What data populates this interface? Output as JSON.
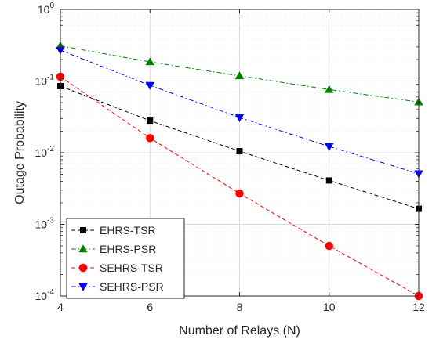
{
  "chart_data": {
    "type": "line",
    "title": "",
    "xlabel": "Number of Relays (N)",
    "ylabel": "Outage Probability",
    "x": [
      4,
      6,
      8,
      10,
      12
    ],
    "xlim": [
      4,
      12
    ],
    "ylim": [
      0.0001,
      1
    ],
    "yscale": "log",
    "xticks": [
      "4",
      "6",
      "8",
      "10",
      "12"
    ],
    "yticks": [
      {
        "base": "10",
        "exp": "-4"
      },
      {
        "base": "10",
        "exp": "-3"
      },
      {
        "base": "10",
        "exp": "-2"
      },
      {
        "base": "10",
        "exp": "-1"
      },
      {
        "base": "10",
        "exp": "0"
      }
    ],
    "grid": true,
    "legend_position": "bottom-left",
    "series": [
      {
        "name": "EHRS-TSR",
        "values": [
          0.085,
          0.028,
          0.0105,
          0.0041,
          0.00165
        ],
        "color": "#000000",
        "marker": "square",
        "dash": "dashed"
      },
      {
        "name": "EHRS-PSR",
        "values": [
          0.31,
          0.185,
          0.118,
          0.076,
          0.051
        ],
        "color": "#008000",
        "marker": "triangle-up",
        "dash": "dashdot"
      },
      {
        "name": "SEHRS-TSR",
        "values": [
          0.115,
          0.016,
          0.0027,
          0.0005,
          0.0001
        ],
        "color": "#ff0000",
        "marker": "circle",
        "dash": "dashed"
      },
      {
        "name": "SEHRS-PSR",
        "values": [
          0.27,
          0.087,
          0.031,
          0.0122,
          0.0051
        ],
        "color": "#0000ff",
        "marker": "triangle-down",
        "dash": "dashdot"
      }
    ]
  }
}
